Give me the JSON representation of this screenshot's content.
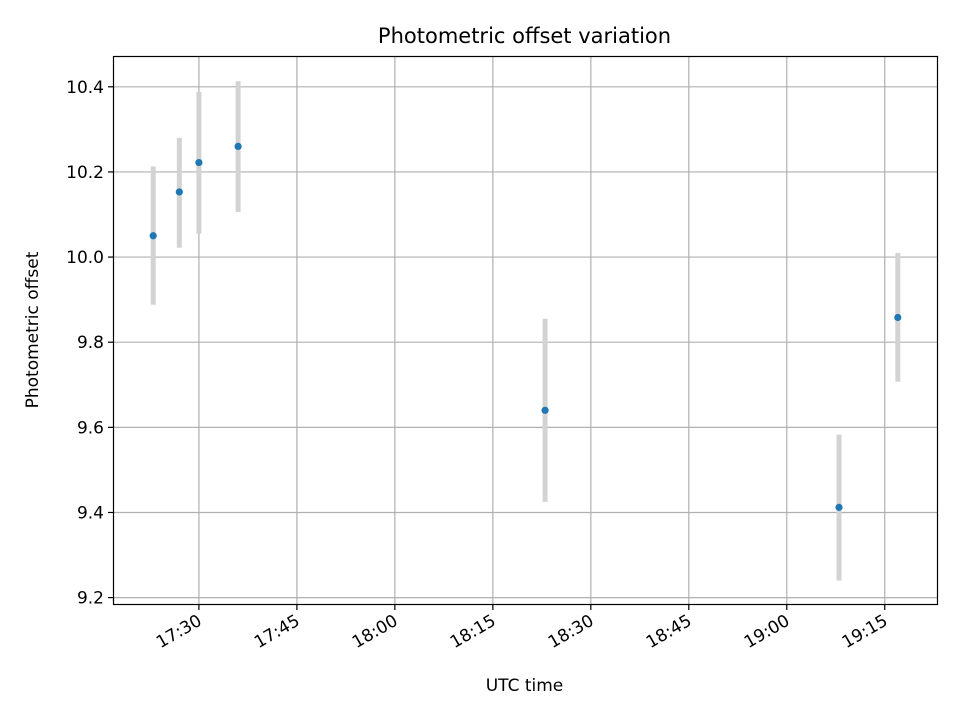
{
  "chart_data": {
    "type": "scatter",
    "title": "Photometric offset variation",
    "xlabel": "UTC time",
    "ylabel": "Photometric offset",
    "x_ticks": [
      "17:30",
      "17:45",
      "18:00",
      "18:15",
      "18:30",
      "18:45",
      "19:00",
      "19:15"
    ],
    "y_ticks": [
      "9.2",
      "9.4",
      "9.6",
      "9.8",
      "10.0",
      "10.2",
      "10.4"
    ],
    "xlim": [
      "17:17",
      "19:23"
    ],
    "ylim": [
      9.185,
      10.47
    ],
    "grid": true,
    "series": [
      {
        "x": [
          "17:23",
          "17:27",
          "17:30",
          "17:36",
          "18:23",
          "19:08",
          "19:17"
        ],
        "y": [
          10.05,
          10.153,
          10.222,
          10.26,
          9.64,
          9.412,
          9.858
        ],
        "yerr_low": [
          9.888,
          10.022,
          10.055,
          10.106,
          9.425,
          9.24,
          9.707
        ],
        "yerr_high": [
          10.213,
          10.28,
          10.388,
          10.413,
          9.855,
          9.583,
          10.01
        ],
        "marker_color": "#1f77b4",
        "errorbar_color": "#d3d3d3"
      }
    ]
  }
}
